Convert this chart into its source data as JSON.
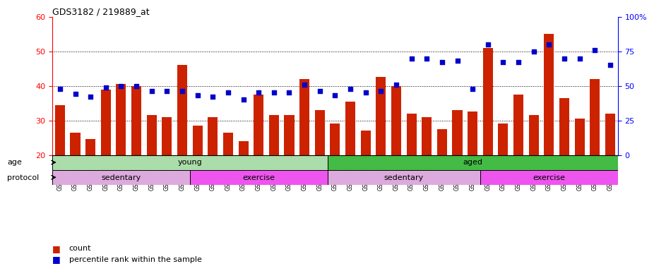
{
  "title": "GDS3182 / 219889_at",
  "samples": [
    "GSM230408",
    "GSM230409",
    "GSM230410",
    "GSM230411",
    "GSM230412",
    "GSM230413",
    "GSM230414",
    "GSM230415",
    "GSM230416",
    "GSM230417",
    "GSM230419",
    "GSM230420",
    "GSM230421",
    "GSM230422",
    "GSM230423",
    "GSM230424",
    "GSM230425",
    "GSM230426",
    "GSM230387",
    "GSM230388",
    "GSM230389",
    "GSM230390",
    "GSM230391",
    "GSM230392",
    "GSM230393",
    "GSM230394",
    "GSM230395",
    "GSM230396",
    "GSM230398",
    "GSM230399",
    "GSM230400",
    "GSM230401",
    "GSM230402",
    "GSM230403",
    "GSM230404",
    "GSM230405",
    "GSM230406"
  ],
  "counts": [
    34.5,
    26.5,
    24.5,
    39.0,
    40.5,
    40.0,
    31.5,
    31.0,
    46.0,
    28.5,
    31.0,
    26.5,
    24.0,
    37.5,
    31.5,
    31.5,
    42.0,
    33.0,
    29.0,
    35.5,
    27.0,
    42.5,
    40.0,
    32.0,
    31.0,
    27.5,
    33.0,
    32.5,
    51.0,
    29.0,
    37.5,
    31.5,
    55.0,
    36.5,
    30.5,
    42.0,
    32.0
  ],
  "percentiles": [
    48,
    44,
    42,
    49,
    50,
    50,
    46,
    46,
    46,
    43,
    42,
    45,
    40,
    45,
    45,
    45,
    51,
    46,
    43,
    48,
    45,
    46,
    51,
    70,
    70,
    67,
    68,
    48,
    80,
    67,
    67,
    75,
    80,
    70,
    70,
    76,
    65
  ],
  "ylim_left": [
    20,
    60
  ],
  "ylim_right": [
    0,
    100
  ],
  "yticks_left": [
    20,
    30,
    40,
    50,
    60
  ],
  "yticks_right": [
    0,
    25,
    50,
    75,
    100
  ],
  "bar_color": "#cc2200",
  "dot_color": "#0000cc",
  "grid_lines": [
    30,
    40,
    50
  ],
  "age_young_count": 18,
  "age_aged_count": 19,
  "age_young_label": "young",
  "age_aged_label": "aged",
  "age_young_color": "#aaddaa",
  "age_aged_color": "#44bb44",
  "proto_starts": [
    0,
    9,
    18,
    28
  ],
  "proto_counts": [
    9,
    9,
    10,
    9
  ],
  "proto_labels": [
    "sedentary",
    "exercise",
    "sedentary",
    "exercise"
  ],
  "proto_colors": [
    "#ddaadd",
    "#ee55ee",
    "#ddaadd",
    "#ee55ee"
  ],
  "left_label_age": "age",
  "left_label_proto": "protocol",
  "legend_count": "count",
  "legend_pct": "percentile rank within the sample"
}
